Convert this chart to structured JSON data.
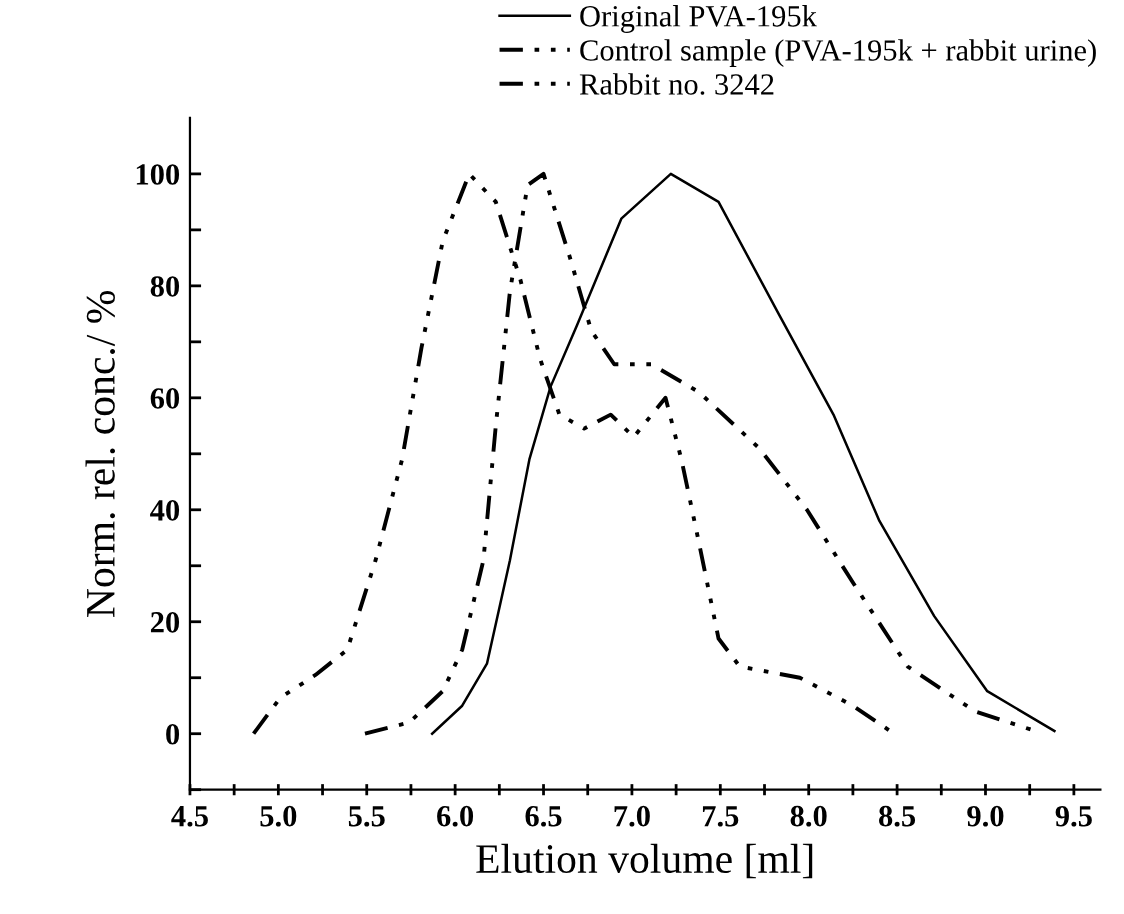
{
  "chart_data": {
    "type": "line",
    "xlabel": "Elution volume [ml]",
    "ylabel": "Norm. rel. conc./ %",
    "xlim": [
      4.5,
      9.65
    ],
    "ylim": [
      -10,
      110
    ],
    "xticks": [
      4.5,
      {
        "value": 4.75,
        "label": null
      },
      {
        "value": 5,
        "label": "5.0"
      },
      {
        "value": 5.25,
        "label": null
      },
      5.5,
      {
        "value": 5.75,
        "label": null
      },
      {
        "value": 6,
        "label": "6.0"
      },
      {
        "value": 6.25,
        "label": null
      },
      6.5,
      {
        "value": 6.75,
        "label": null
      },
      {
        "value": 7,
        "label": "7.0"
      },
      {
        "value": 7.25,
        "label": null
      },
      7.5,
      {
        "value": 7.75,
        "label": null
      },
      {
        "value": 8,
        "label": "8.0"
      },
      {
        "value": 8.25,
        "label": null
      },
      8.5,
      {
        "value": 8.75,
        "label": null
      },
      {
        "value": 9,
        "label": "9.0"
      },
      {
        "value": 9.25,
        "label": null
      },
      9.5
    ],
    "yticks": [
      {
        "value": -10,
        "label": null
      },
      0,
      {
        "value": 10,
        "label": null
      },
      20,
      {
        "value": 30,
        "label": null
      },
      40,
      {
        "value": 50,
        "label": null
      },
      60,
      {
        "value": 70,
        "label": null
      },
      80,
      {
        "value": 90,
        "label": null
      },
      100
    ],
    "grid": false,
    "legend": "top right",
    "marker": "none",
    "series": [
      {
        "name": "Original PVA-195k",
        "color": "#000000",
        "line_style": "solid",
        "x": [
          5.87,
          6.04,
          6.18,
          6.31,
          6.42,
          6.54,
          6.69,
          6.94,
          7.22,
          7.49,
          7.83,
          8.14,
          8.4,
          8.71,
          9.01,
          9.39
        ],
        "values": [
          0,
          5,
          12.5,
          31,
          49,
          62,
          73,
          92,
          100,
          95,
          75,
          57,
          38,
          21,
          7.6,
          0.5
        ]
      },
      {
        "name": "Control sample (PVA-195k + rabbit urine)",
        "color": "#000000",
        "line_style": "dashdot",
        "x": [
          5.49,
          5.74,
          5.93,
          6.04,
          6.16,
          6.23,
          6.31,
          6.41,
          6.5,
          6.65,
          6.77,
          6.9,
          7.11,
          7.38,
          7.72,
          7.99,
          8.25,
          8.56,
          8.94,
          9.28
        ],
        "values": [
          0,
          2,
          7.6,
          15,
          31,
          55,
          79,
          98,
          100,
          85,
          72,
          66,
          66,
          61,
          51,
          40,
          27,
          12,
          4,
          0.5
        ]
      },
      {
        "name": "Rabbit no. 3242",
        "color": "#000000",
        "line_style": "dashdotdot",
        "x": [
          4.86,
          5.01,
          5.21,
          5.39,
          5.55,
          5.7,
          5.81,
          5.93,
          6.08,
          6.23,
          6.37,
          6.48,
          6.59,
          6.73,
          6.88,
          7.01,
          7.19,
          7.28,
          7.38,
          7.49,
          7.61,
          7.95,
          8.25,
          8.46
        ],
        "values": [
          0,
          6.4,
          10.5,
          15,
          31,
          49,
          69,
          88,
          100,
          95,
          81,
          67,
          57,
          54.5,
          57,
          53,
          60,
          49,
          34,
          17,
          12,
          10,
          5,
          0.5
        ]
      }
    ]
  }
}
